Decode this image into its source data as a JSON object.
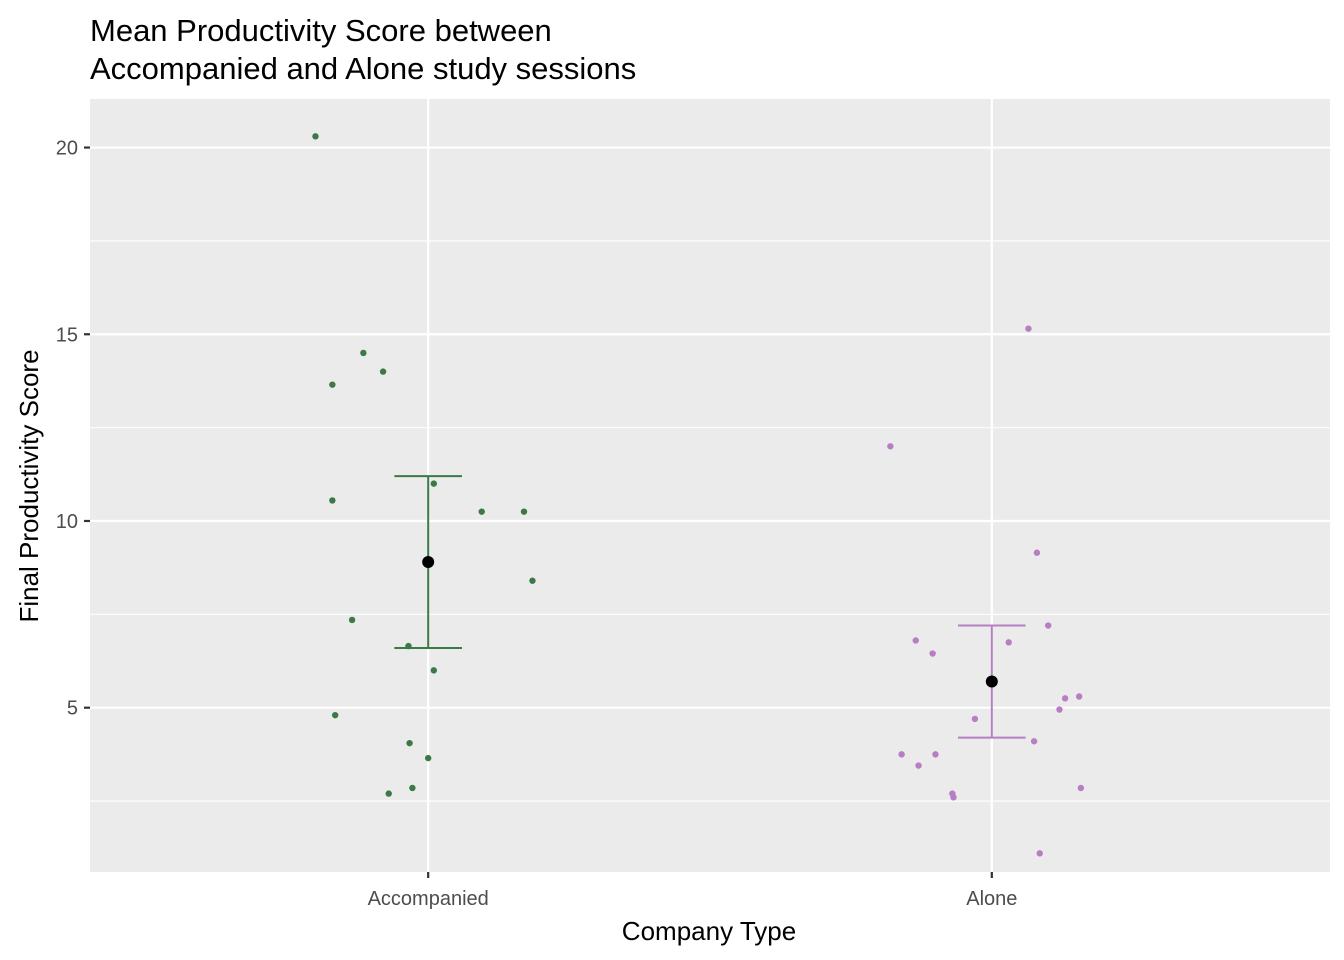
{
  "chart_data": {
    "type": "scatter",
    "title_lines": [
      "Mean Productivity Score between",
      "Accompanied and Alone study sessions"
    ],
    "xlabel": "Company Type",
    "ylabel": "Final Productivity Score",
    "categories": [
      "Accompanied",
      "Alone"
    ],
    "yticks": [
      5,
      10,
      15,
      20
    ],
    "ylim": [
      0.6,
      21.3
    ],
    "grid": true,
    "legend": "none",
    "panel_color": "#ebebeb",
    "series": [
      {
        "category": "Accompanied",
        "color": "#3b7a47",
        "points": [
          {
            "x": -0.2,
            "y": 20.3
          },
          {
            "x": -0.17,
            "y": 13.65
          },
          {
            "x": -0.115,
            "y": 14.5
          },
          {
            "x": -0.08,
            "y": 14.0
          },
          {
            "x": -0.17,
            "y": 10.55
          },
          {
            "x": 0.01,
            "y": 11.0
          },
          {
            "x": 0.095,
            "y": 10.25
          },
          {
            "x": 0.17,
            "y": 10.25
          },
          {
            "x": 0.185,
            "y": 8.4
          },
          {
            "x": -0.135,
            "y": 7.35
          },
          {
            "x": -0.035,
            "y": 6.65
          },
          {
            "x": 0.01,
            "y": 6.0
          },
          {
            "x": -0.165,
            "y": 4.8
          },
          {
            "x": -0.033,
            "y": 4.05
          },
          {
            "x": 0.0,
            "y": 3.65
          },
          {
            "x": -0.07,
            "y": 2.7
          },
          {
            "x": -0.028,
            "y": 2.85
          }
        ],
        "mean": 8.9,
        "error_low": 6.6,
        "error_high": 11.2
      },
      {
        "category": "Alone",
        "color": "#b77ec4",
        "points": [
          {
            "x": 0.065,
            "y": 15.15
          },
          {
            "x": -0.18,
            "y": 12.0
          },
          {
            "x": 0.08,
            "y": 9.15
          },
          {
            "x": 0.1,
            "y": 7.2
          },
          {
            "x": -0.135,
            "y": 6.8
          },
          {
            "x": 0.03,
            "y": 6.75
          },
          {
            "x": -0.105,
            "y": 6.45
          },
          {
            "x": -0.03,
            "y": 4.7
          },
          {
            "x": 0.075,
            "y": 4.1
          },
          {
            "x": 0.13,
            "y": 5.25
          },
          {
            "x": 0.155,
            "y": 5.3
          },
          {
            "x": 0.12,
            "y": 4.95
          },
          {
            "x": -0.16,
            "y": 3.75
          },
          {
            "x": -0.1,
            "y": 3.75
          },
          {
            "x": -0.13,
            "y": 3.45
          },
          {
            "x": -0.07,
            "y": 2.7
          },
          {
            "x": -0.068,
            "y": 2.6
          },
          {
            "x": 0.158,
            "y": 2.85
          },
          {
            "x": 0.085,
            "y": 1.1
          }
        ],
        "mean": 5.7,
        "error_low": 4.2,
        "error_high": 7.2
      }
    ]
  }
}
